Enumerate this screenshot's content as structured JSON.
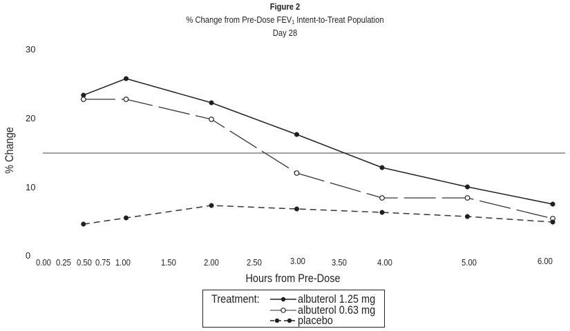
{
  "chart_data": {
    "type": "line",
    "figure_label": "Figure 2",
    "title": "% Change from Pre-Dose FEV",
    "title_subscript": "1",
    "title_suffix": " Intent-to-Treat Population",
    "subtitle": "Day 28",
    "xlabel": "Hours from Pre-Dose",
    "ylabel": "% Change",
    "xlim": [
      0,
      6
    ],
    "ylim": [
      0,
      30
    ],
    "grid": false,
    "x_tick_labels": [
      "0.00",
      "0.25",
      "0.50",
      "0.75",
      "1.00",
      "1.50",
      "2.00",
      "2.50",
      "3.00",
      "3.50",
      "4.00",
      "5.00",
      "6.00"
    ],
    "y_tick_labels": [
      "0",
      "10",
      "20",
      "30"
    ],
    "y_ticks": [
      0,
      10,
      20,
      30
    ],
    "reference_line": {
      "y": 15,
      "color": "#808080"
    },
    "x": [
      0.5,
      1.0,
      2.0,
      3.0,
      4.0,
      5.0,
      6.0
    ],
    "series": [
      {
        "name": "albuterol 1.25 mg",
        "marker": "filled-circle",
        "line": "solid",
        "values": [
          23.4,
          25.8,
          22.3,
          17.7,
          12.9,
          10.1,
          7.6
        ]
      },
      {
        "name": "albuterol 0.63 mg",
        "marker": "open-circle",
        "line": "long-dash",
        "values": [
          22.8,
          22.8,
          19.9,
          12.1,
          8.5,
          8.5,
          5.5
        ]
      },
      {
        "name": "placebo",
        "marker": "filled-circle",
        "line": "short-dash",
        "values": [
          4.7,
          5.6,
          7.4,
          6.9,
          6.4,
          5.8,
          5.0
        ]
      }
    ],
    "legend": {
      "heading": "Treatment:",
      "placement": "bottom-center",
      "entries": [
        "albuterol 1.25 mg",
        "albuterol 0.63 mg",
        "placebo"
      ]
    }
  }
}
